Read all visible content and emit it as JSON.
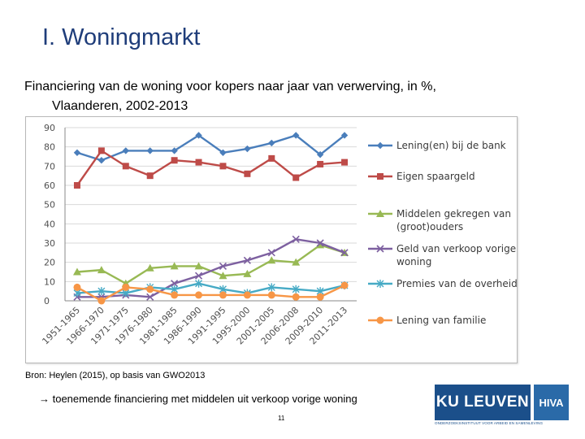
{
  "header": {
    "title": "I. Woningmarkt",
    "subtitle_line1": "Financiering van de woning voor kopers naar jaar van verwerving, in %,",
    "subtitle_line2": "Vlaanderen, 2002-2013"
  },
  "source": "Bron: Heylen (2015), op basis van GWO2013",
  "note": "→ toenemende financiering met middelen uit verkoop vorige woning",
  "page_number": "11",
  "logo": {
    "main": "KU LEUVEN",
    "partner": "HIVA",
    "tagline": "ONDERZOEKSINSTITUUT VOOR ARBEID EN SAMENLEVING"
  },
  "chart_data": {
    "type": "line",
    "categories": [
      "1951-1965",
      "1966-1970",
      "1971-1975",
      "1976-1980",
      "1981-1985",
      "1986-1990",
      "1991-1995",
      "1995-2000",
      "2001-2005",
      "2006-2008",
      "2009-2010",
      "2011-2013"
    ],
    "ylim": [
      0,
      90
    ],
    "yticks": [
      "0",
      "10",
      "20",
      "30",
      "40",
      "50",
      "60",
      "70",
      "80",
      "90"
    ],
    "grid": true,
    "legend_position": "right",
    "series": [
      {
        "name": "Lening(en) bij de bank",
        "legend_lines": [
          "Lening(en) bij de bank"
        ],
        "color": "#4a7ebb",
        "marker": "diamond",
        "values": [
          77,
          73,
          78,
          78,
          78,
          86,
          77,
          79,
          82,
          86,
          76,
          86
        ]
      },
      {
        "name": "Eigen spaargeld",
        "legend_lines": [
          "Eigen spaargeld"
        ],
        "color": "#be4b48",
        "marker": "square",
        "values": [
          60,
          78,
          70,
          65,
          73,
          72,
          70,
          66,
          74,
          64,
          71,
          72
        ]
      },
      {
        "name": "Middelen gekregen van (groot)ouders",
        "legend_lines": [
          "Middelen gekregen van",
          "(groot)ouders"
        ],
        "color": "#98b954",
        "marker": "triangle",
        "values": [
          15,
          16,
          9,
          17,
          18,
          18,
          13,
          14,
          21,
          20,
          29,
          25
        ]
      },
      {
        "name": "Geld van verkoop vorige woning",
        "legend_lines": [
          "Geld van verkoop vorige",
          "woning"
        ],
        "color": "#7d60a0",
        "marker": "x",
        "values": [
          2,
          2,
          3,
          2,
          9,
          13,
          18,
          21,
          25,
          32,
          30,
          25
        ]
      },
      {
        "name": "Premies van de overheid",
        "legend_lines": [
          "Premies van de overheid"
        ],
        "color": "#46aac5",
        "marker": "star",
        "values": [
          4,
          5,
          4,
          7,
          6,
          9,
          6,
          4,
          7,
          6,
          5,
          8
        ]
      },
      {
        "name": "Lening van familie",
        "legend_lines": [
          "Lening van familie"
        ],
        "color": "#f79646",
        "marker": "circle",
        "values": [
          7,
          0,
          7,
          6,
          3,
          3,
          3,
          3,
          3,
          2,
          2,
          8
        ]
      }
    ]
  }
}
